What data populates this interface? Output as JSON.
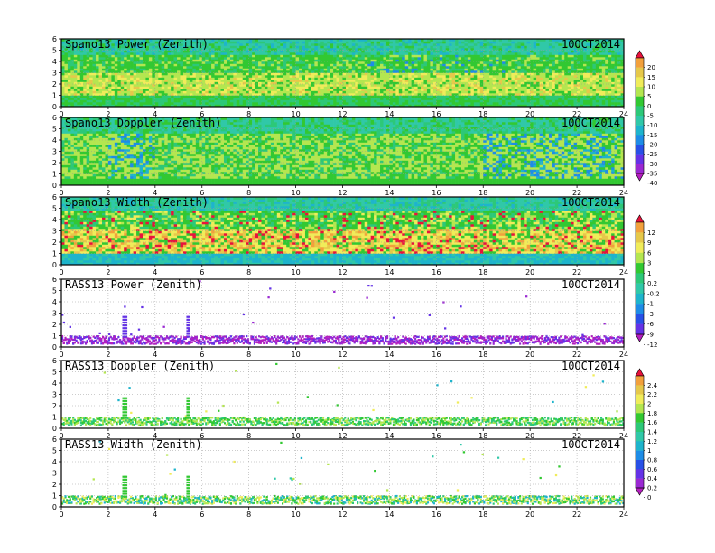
{
  "chart_data": {
    "type": "heatmap",
    "x_axis": {
      "range": [
        0,
        24
      ],
      "ticks": [
        0,
        2,
        4,
        6,
        8,
        10,
        12,
        14,
        16,
        18,
        20,
        22,
        24
      ],
      "label": ""
    },
    "y_axis": {
      "range": [
        0,
        6
      ],
      "ticks": [
        0,
        1,
        2,
        3,
        4,
        5,
        6
      ],
      "label": ""
    },
    "grid": true,
    "panels": [
      {
        "title": "Spano13 Power (Zenith)",
        "date": "10OCT2014",
        "kind": "power",
        "colorbar": 0
      },
      {
        "title": "Spano13 Doppler (Zenith)",
        "date": "10OCT2014",
        "kind": "doppler",
        "colorbar": 0
      },
      {
        "title": "Spano13 Width (Zenith)",
        "date": "10OCT2014",
        "kind": "width",
        "colorbar": 1
      },
      {
        "title": "RASS13 Power (Zenith)",
        "date": "10OCT2014",
        "kind": "rass_power",
        "colorbar": 1
      },
      {
        "title": "RASS13 Doppler (Zenith)",
        "date": "10OCT2014",
        "kind": "rass_doppler",
        "colorbar": 2
      },
      {
        "title": "RASS13 Width (Zenith)",
        "date": "10OCT2014",
        "kind": "rass_width",
        "colorbar": 2
      }
    ],
    "colorbars": [
      {
        "labels": [
          "20",
          "15",
          "10",
          "5",
          "0",
          "-5",
          "-10",
          "-15",
          "-20",
          "-25",
          "-30",
          "-35",
          "-40"
        ],
        "colors": [
          "#e8123c",
          "#f2a03c",
          "#e6c84a",
          "#f0ec5a",
          "#b4e650",
          "#32c832",
          "#2dc878",
          "#30c8a8",
          "#1eb4cc",
          "#1e8ce6",
          "#2850e6",
          "#6432e6",
          "#9a28d2",
          "#b41ebe"
        ]
      },
      {
        "labels": [
          "12",
          "9",
          "6",
          "3",
          "1",
          "0.2",
          "-0.2",
          "-1",
          "-3",
          "-6",
          "-9",
          "-12"
        ],
        "colors": [
          "#e8123c",
          "#f2a03c",
          "#e6c84a",
          "#f0ec5a",
          "#b4e650",
          "#32c832",
          "#2dc878",
          "#30c8a8",
          "#1eb4cc",
          "#1e8ce6",
          "#2850e6",
          "#6432e6",
          "#b41ebe"
        ]
      },
      {
        "labels": [
          "2.4",
          "2.2",
          "2",
          "1.8",
          "1.6",
          "1.4",
          "1.2",
          "1",
          "0.8",
          "0.6",
          "0.4",
          "0.2",
          "0"
        ],
        "colors": [
          "#e8123c",
          "#f2a03c",
          "#e6c84a",
          "#f0ec5a",
          "#b4e650",
          "#32c832",
          "#2dc878",
          "#30c8a8",
          "#1eb4cc",
          "#1e8ce6",
          "#2850e6",
          "#6432e6",
          "#9a28d2",
          "#b41ebe"
        ]
      }
    ]
  }
}
